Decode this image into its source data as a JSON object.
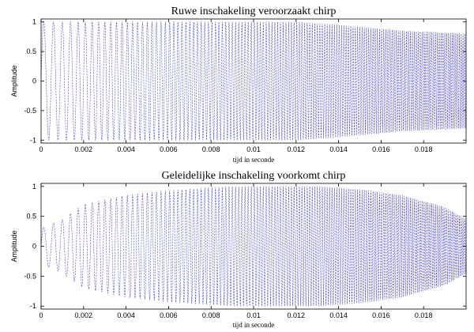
{
  "chart_data": [
    {
      "type": "line",
      "title": "Ruwe inschakeling veroorzaakt chirp",
      "xlabel": "tijd in seconde",
      "ylabel": "Amplitude",
      "xlim": [
        0,
        0.02
      ],
      "ylim": [
        -1.05,
        1.05
      ],
      "x_ticks": [
        "0",
        "0.002",
        "0.004",
        "0.006",
        "0.008",
        "0.01",
        "0.012",
        "0.014",
        "0.016",
        "0.018"
      ],
      "y_ticks": [
        "1",
        "0.5",
        "0",
        "-0.5",
        "-1"
      ],
      "grid": false,
      "line_color": "#3a3ad0",
      "signal": {
        "start_frequency_hz": 2000,
        "end_frequency_hz": 12000,
        "duration_s": 0.02,
        "envelope": [
          [
            0.0,
            1.0
          ],
          [
            0.012,
            1.0
          ],
          [
            0.014,
            0.95
          ],
          [
            0.017,
            0.85
          ],
          [
            0.02,
            0.8
          ]
        ]
      }
    },
    {
      "type": "line",
      "title": "Geleidelijke inschakeling voorkomt chirp",
      "xlabel": "tijd in seconde",
      "ylabel": "Amplitude",
      "xlim": [
        0,
        0.02
      ],
      "ylim": [
        -1.05,
        1.05
      ],
      "x_ticks": [
        "0",
        "0.002",
        "0.004",
        "0.006",
        "0.008",
        "0.01",
        "0.012",
        "0.014",
        "0.016",
        "0.018"
      ],
      "y_ticks": [
        "1",
        "0.5",
        "0",
        "-0.5",
        "-1"
      ],
      "grid": false,
      "line_color": "#3a3ad0",
      "signal": {
        "start_frequency_hz": 2000,
        "end_frequency_hz": 12000,
        "duration_s": 0.02,
        "envelope": [
          [
            0.0,
            0.3
          ],
          [
            0.001,
            0.45
          ],
          [
            0.002,
            0.7
          ],
          [
            0.004,
            0.85
          ],
          [
            0.006,
            0.93
          ],
          [
            0.009,
            1.0
          ],
          [
            0.013,
            1.0
          ],
          [
            0.015,
            0.95
          ],
          [
            0.017,
            0.85
          ],
          [
            0.019,
            0.65
          ],
          [
            0.02,
            0.45
          ]
        ]
      }
    }
  ]
}
